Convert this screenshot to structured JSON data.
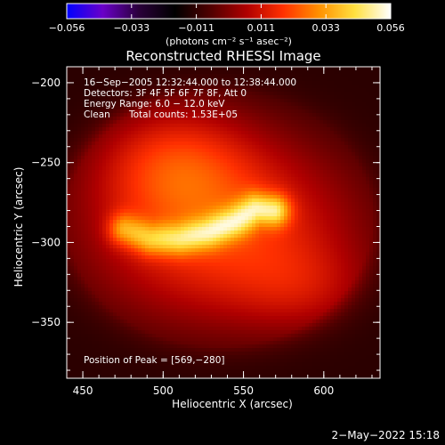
{
  "colorbar": {
    "ticks": [
      "−0.056",
      "−0.033",
      "−0.011",
      "0.011",
      "0.033",
      "0.056"
    ],
    "unit_label": "(photons cm⁻² s⁻¹ asec⁻²)",
    "range": [
      -0.056,
      0.056
    ],
    "colormap": [
      "#0000ff",
      "#6a00c8",
      "#2a003a",
      "#000000",
      "#500000",
      "#b00000",
      "#ff3000",
      "#ff9000",
      "#ffe040",
      "#ffffff"
    ]
  },
  "chart_data": {
    "type": "heatmap",
    "title": "Reconstructed RHESSI Image",
    "xlabel": "Heliocentric X (arcsec)",
    "ylabel": "Heliocentric Y (arcsec)",
    "xlim": [
      440,
      635
    ],
    "ylim": [
      -385,
      -190
    ],
    "xticks": [
      "450",
      "500",
      "550",
      "600"
    ],
    "yticks": [
      "−200",
      "−250",
      "−300",
      "−350"
    ],
    "xtick_values": [
      450,
      500,
      550,
      600
    ],
    "ytick_values": [
      -200,
      -250,
      -300,
      -350
    ],
    "annotations": {
      "line1": "16−Sep−2005 12:32:44.000 to 12:38:44.000",
      "line2": "Detectors: 3F 4F 5F 6F 7F 8F, Att 0",
      "line3": "Energy Range: 6.0 − 12.0 keV",
      "line4_a": "Clean",
      "line4_b": "Total counts: 1.53E+05",
      "peak": "Position of Peak = [569,−280]"
    },
    "peak_position": [
      569,
      -280
    ],
    "source_model": {
      "background": -0.012,
      "components": [
        {
          "x": 535,
          "y": -292,
          "sx": 62,
          "sy": 44,
          "amp": 0.032
        },
        {
          "x": 505,
          "y": -248,
          "sx": 34,
          "sy": 26,
          "amp": 0.018
        },
        {
          "x": 590,
          "y": -330,
          "sx": 30,
          "sy": 20,
          "amp": 0.01
        }
      ],
      "arc": [
        {
          "x": 476,
          "y": -292
        },
        {
          "x": 492,
          "y": -298
        },
        {
          "x": 510,
          "y": -298
        },
        {
          "x": 528,
          "y": -294
        },
        {
          "x": 545,
          "y": -287
        },
        {
          "x": 558,
          "y": -279
        },
        {
          "x": 569,
          "y": -280
        }
      ],
      "arc_width": 7,
      "arc_amp": 0.034
    }
  },
  "footer": {
    "date": "2−May−2022 15:18"
  }
}
